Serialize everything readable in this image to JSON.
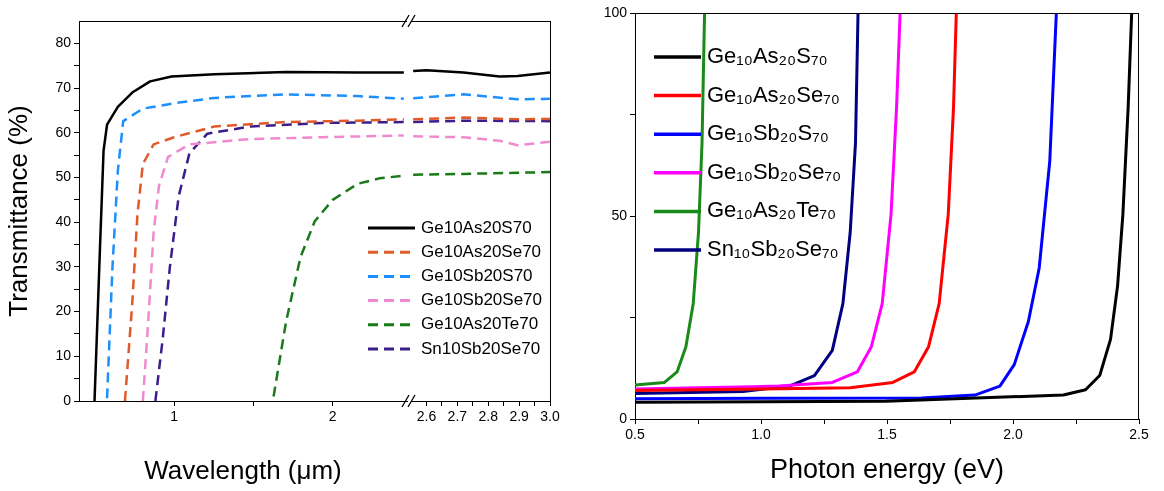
{
  "chart_data": [
    {
      "type": "line",
      "xlabel": "Wavelength (μm)",
      "ylabel": "Transmittance (%)",
      "xlim": [
        0.4,
        2.47
      ],
      "ylim": [
        0,
        85
      ],
      "xticks": [
        1,
        {
          "value": 1.5,
          "label": null
        },
        2
      ],
      "yticks": [
        0,
        {
          "value": 5,
          "label": null
        },
        10,
        {
          "value": 15,
          "label": null
        },
        20,
        {
          "value": 25,
          "label": null
        },
        30,
        {
          "value": 35,
          "label": null
        },
        40,
        {
          "value": 45,
          "label": null
        },
        50,
        {
          "value": 55,
          "label": null
        },
        60,
        {
          "value": 65,
          "label": null
        },
        70,
        {
          "value": 75,
          "label": null
        },
        80
      ],
      "legend": "bottom right",
      "series": [
        {
          "name": "Ge10As20S70",
          "color": "#000000",
          "line_style": "solid",
          "x": [
            0.498,
            0.532,
            0.555,
            0.577,
            0.645,
            0.736,
            0.849,
            0.984,
            1.255,
            1.707,
            2.16,
            2.45
          ],
          "values": [
            0,
            33.8,
            56,
            61.8,
            65.8,
            69,
            71.5,
            72.6,
            73.1,
            73.6,
            73.5,
            73.5
          ]
        },
        {
          "name": "Ge10As20Se70",
          "color": "#e05a2b",
          "line_style": "dashed",
          "x": [
            0.69,
            0.736,
            0.769,
            0.803,
            0.871,
            1.0,
            1.255,
            1.707,
            2.16,
            2.45
          ],
          "values": [
            0,
            21.8,
            41.8,
            53,
            57.4,
            59,
            61.4,
            62.4,
            62.7,
            63
          ]
        },
        {
          "name": "Ge10Sb20S70",
          "color": "#1e8fff",
          "line_style": "dashed",
          "x": [
            0.577,
            0.611,
            0.645,
            0.679,
            0.803,
            1.0,
            1.255,
            1.707,
            2.16,
            2.45
          ],
          "values": [
            0.6,
            29.8,
            51.4,
            62.6,
            65.4,
            66.6,
            67.8,
            68.6,
            68.2,
            67.6
          ]
        },
        {
          "name": "Ge10Sb20Se70",
          "color": "#f08ad0",
          "line_style": "dashed",
          "x": [
            0.803,
            0.837,
            0.871,
            0.905,
            0.962,
            1.097,
            1.481,
            1.933,
            2.45
          ],
          "values": [
            0,
            17.8,
            37.8,
            48.2,
            54.6,
            57.4,
            58.6,
            59,
            59.4
          ]
        },
        {
          "name": "Ge10As20Te70",
          "color": "#1a7a1a",
          "line_style": "dashed",
          "x": [
            1.628,
            1.707,
            1.798,
            1.888,
            2.001,
            2.16,
            2.295,
            2.45
          ],
          "values": [
            1,
            17.8,
            32.2,
            40.2,
            45,
            48.6,
            49.8,
            50.4
          ]
        },
        {
          "name": "Sn10Sb20Se70",
          "color": "#3b1e8c",
          "line_style": "dashed",
          "x": [
            0.882,
            0.928,
            0.973,
            1.029,
            1.097,
            1.21,
            1.481,
            1.933,
            2.45
          ],
          "values": [
            0,
            13.8,
            29.8,
            45.8,
            55.4,
            59.8,
            61.4,
            62.2,
            62.4
          ]
        }
      ]
    },
    {
      "type": "line",
      "xlim": [
        2.55,
        3.0
      ],
      "ylim": [
        0,
        85
      ],
      "tick_labels": "x",
      "xticks": [
        2.6,
        {
          "value": 2.65,
          "label": null
        },
        2.7,
        {
          "value": 2.75,
          "label": null
        },
        2.8,
        {
          "value": 2.85,
          "label": null
        },
        2.9,
        {
          "value": 2.95,
          "label": null
        },
        {
          "value": 3.0,
          "label": "3.0"
        }
      ],
      "yticks": [
        0,
        10,
        20,
        30,
        40,
        50,
        60,
        70,
        80
      ],
      "series": [
        {
          "color": "#000000",
          "line_style": "solid",
          "x": [
            2.557,
            2.6,
            2.72,
            2.837,
            2.895,
            3.0
          ],
          "values": [
            73.8,
            74,
            73.5,
            72.6,
            72.7,
            73.5
          ]
        },
        {
          "color": "#e05a2b",
          "line_style": "dashed",
          "x": [
            2.557,
            2.72,
            2.895,
            3.0
          ],
          "values": [
            63,
            63.4,
            63,
            63.1
          ]
        },
        {
          "color": "#1e8fff",
          "line_style": "dashed",
          "x": [
            2.557,
            2.66,
            2.72,
            2.895,
            3.0
          ],
          "values": [
            67.7,
            68.3,
            68.6,
            67.5,
            67.6
          ]
        },
        {
          "color": "#f08ad0",
          "line_style": "dashed",
          "x": [
            2.557,
            2.72,
            2.837,
            2.895,
            3.0
          ],
          "values": [
            59.2,
            59,
            58.2,
            57.2,
            58
          ]
        },
        {
          "color": "#1a7a1a",
          "line_style": "dashed",
          "x": [
            2.557,
            2.72,
            3.0
          ],
          "values": [
            50.6,
            50.8,
            51.2
          ]
        },
        {
          "color": "#3b1e8c",
          "line_style": "dashed",
          "x": [
            2.557,
            2.72,
            3.0
          ],
          "values": [
            62.4,
            62.7,
            62.6
          ]
        }
      ]
    },
    {
      "type": "line",
      "xlabel": "Photon energy (eV)",
      "xlim": [
        0.5,
        2.5
      ],
      "ylim": [
        0,
        100
      ],
      "xticks": [
        {
          "value": 0.5,
          "label": "0.5"
        },
        {
          "value": 0.75,
          "label": null
        },
        {
          "value": 1.0,
          "label": "1.0"
        },
        {
          "value": 1.25,
          "label": null
        },
        {
          "value": 1.5,
          "label": "1.5"
        },
        {
          "value": 1.75,
          "label": null
        },
        {
          "value": 2.0,
          "label": "2.0"
        },
        {
          "value": 2.25,
          "label": null
        },
        {
          "value": 2.5,
          "label": "2.5"
        }
      ],
      "yticks": [
        0,
        {
          "value": 25,
          "label": null
        },
        50,
        {
          "value": 75,
          "label": null
        },
        100
      ],
      "legend": "top left",
      "series": [
        {
          "name": "Ge₁₀As₂₀S₇₀",
          "color": "#000000",
          "x": [
            0.5,
            1.495,
            2.2,
            2.288,
            2.344,
            2.387,
            2.415,
            2.436,
            2.457,
            2.471
          ],
          "values": [
            4.1,
            4.4,
            5.9,
            7.2,
            10.7,
            19.6,
            32.8,
            50.4,
            76.8,
            100
          ]
        },
        {
          "name": "Ge₁₀As₂₀Se₇₀",
          "color": "#ff0000",
          "x": [
            0.5,
            1.354,
            1.523,
            1.608,
            1.665,
            1.707,
            1.743,
            1.764,
            1.775
          ],
          "values": [
            7,
            7.7,
            9,
            11.6,
            17.8,
            28.4,
            50.4,
            76.8,
            100
          ]
        },
        {
          "name": "Ge₁₀Sb₂₀S₇₀",
          "color": "#0000ff",
          "x": [
            0.5,
            1.637,
            1.849,
            1.948,
            2.005,
            2.061,
            2.104,
            2.146,
            2.172
          ],
          "values": [
            5,
            5.2,
            5.9,
            8.1,
            13.4,
            24,
            37.2,
            63.6,
            100
          ]
        },
        {
          "name": "Ge₁₀Sb₂₀Se₇₀",
          "color": "#ff00ff",
          "x": [
            0.5,
            1.07,
            1.283,
            1.382,
            1.438,
            1.481,
            1.516,
            1.538,
            1.552
          ],
          "values": [
            7.4,
            8.1,
            9,
            11.6,
            17.8,
            28.4,
            50.4,
            76.8,
            100
          ]
        },
        {
          "name": "Ge₁₀As₂₀Te₇₀",
          "color": "#1a8a1a",
          "x": [
            0.5,
            0.617,
            0.667,
            0.702,
            0.731,
            0.752,
            0.766,
            0.776
          ],
          "values": [
            8.4,
            9,
            11.6,
            17.8,
            28.4,
            46,
            68,
            100
          ]
        },
        {
          "name": "Sn₁₀Sb₂₀Se₇₀",
          "color": "#000080",
          "x": [
            0.5,
            0.929,
            1.113,
            1.212,
            1.283,
            1.325,
            1.354,
            1.375,
            1.385
          ],
          "values": [
            6.3,
            6.8,
            8.1,
            10.7,
            16.9,
            28.4,
            46,
            68,
            100
          ]
        }
      ]
    }
  ]
}
